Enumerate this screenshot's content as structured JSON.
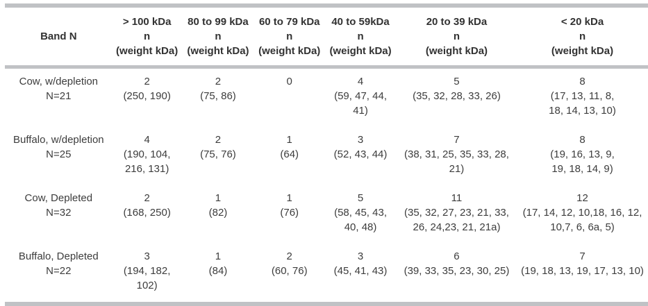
{
  "colors": {
    "rule_gray": "#c0c2c5",
    "header_text": "#323232",
    "body_text": "#3c3c3c",
    "background": "#ffffff"
  },
  "table": {
    "columns": [
      {
        "label": "Band N"
      },
      {
        "label": "> 100 kDa\nn\n(weight kDa)"
      },
      {
        "label": "80 to 99 kDa\nn\n(weight kDa)"
      },
      {
        "label": "60 to 79 kDa\nn\n(weight kDa)"
      },
      {
        "label": "40 to 59kDa\nn\n(weight kDa)"
      },
      {
        "label": "20 to 39 kDa\nn\n(weight kDa)"
      },
      {
        "label": "< 20 kDa\nn\n(weight kDa)"
      }
    ],
    "rows": [
      {
        "cells": [
          "Cow, w/depletion\nN=21",
          "2\n(250, 190)",
          "2\n(75, 86)",
          "0",
          "4\n(59, 47, 44, 41)",
          "5\n(35, 32, 28, 33, 26)",
          "8\n(17, 13, 11, 8,\n18, 14, 13, 10)"
        ]
      },
      {
        "cells": [
          "Buffalo, w/depletion\nN=25",
          "4\n(190, 104,\n216, 131)",
          "2\n(75, 76)",
          "1\n(64)",
          "3\n(52, 43, 44)",
          "7\n(38, 31, 25, 35, 33, 28,\n21)",
          "8\n(19, 16, 13, 9,\n19, 18, 14, 9)"
        ]
      },
      {
        "cells": [
          "Cow, Depleted\nN=32",
          "2\n(168, 250)",
          "1\n(82)",
          "1\n(76)",
          "5\n(58, 45, 43,\n40, 48)",
          "11\n(35, 32, 27, 23, 21, 33,\n26, 24,23, 21, 21a)",
          "12\n(17, 14, 12, 10,18, 16, 12,\n10,7, 6, 6a, 5)"
        ]
      },
      {
        "cells": [
          "Buffalo, Depleted\nN=22",
          "3\n(194, 182, 102)",
          "1\n(84)",
          "2\n(60, 76)",
          "3\n(45, 41, 43)",
          "6\n(39, 33, 35, 23, 30, 25)",
          "7\n(19, 18, 13, 19, 17, 13, 10)"
        ]
      }
    ]
  }
}
